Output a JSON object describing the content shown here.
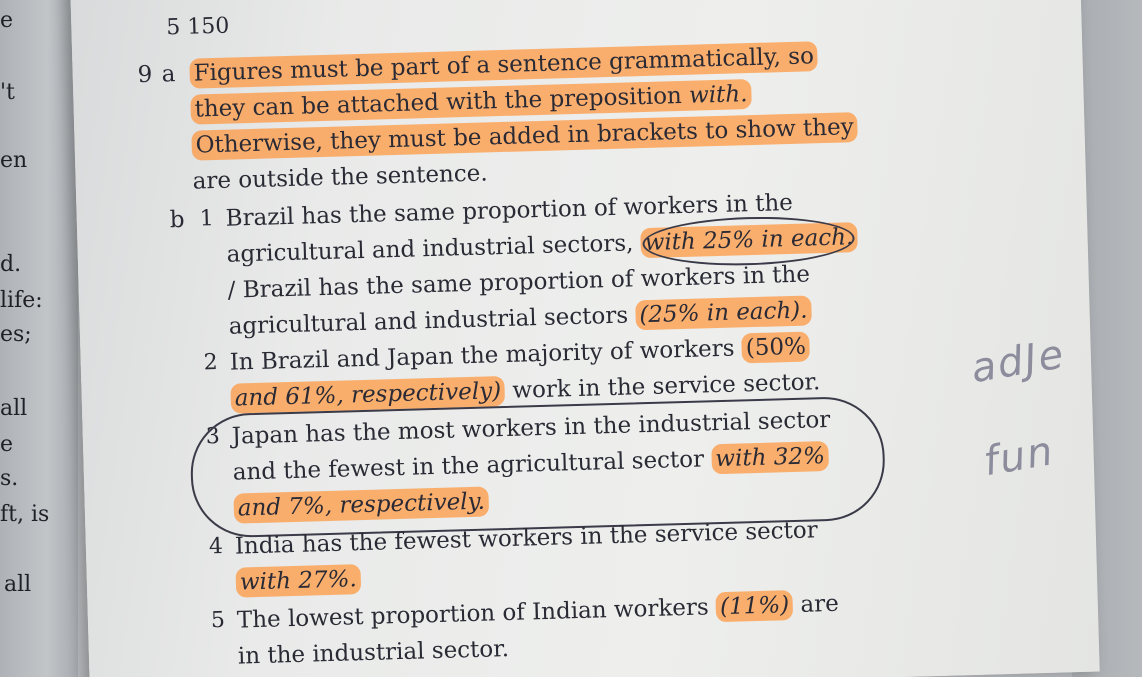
{
  "left_fragments": [
    "e",
    "'t",
    "en",
    "d.",
    "life:",
    "es;",
    "all",
    "e",
    "s.",
    "ft, is",
    "all"
  ],
  "header": {
    "page_ref": "5  150"
  },
  "item9": {
    "number": "9",
    "part_a": {
      "label": "a",
      "lines": [
        "Figures must be part of a sentence grammatically, so",
        "they can be attached with the preposition ",
        "Otherwise, they must be added in brackets to show they",
        "are outside the sentence."
      ],
      "italic_word": "with."
    },
    "part_b": {
      "label": "b",
      "s1": {
        "num": "1",
        "l1": "Brazil has the same proportion of workers in the",
        "l2a": "agricultural and industrial sectors, ",
        "l2b": "with 25% in each.",
        "l3": "/ Brazil has the same proportion of workers in the",
        "l4a": "agricultural and industrial sectors ",
        "l4b": "(25% in each)."
      },
      "s2": {
        "num": "2",
        "l1a": "In Brazil and Japan the majority of workers ",
        "l1b": "(50%",
        "l2a": "and 61%, respectively)",
        "l2b": " work in the service sector."
      },
      "s3": {
        "num": "3",
        "l1": "Japan has the most workers in the industrial sector",
        "l2a": "and the fewest in the agricultural sector ",
        "l2b": "with 32%",
        "l3": "and 7%, respectively."
      },
      "s4": {
        "num": "4",
        "l1": "India has the fewest workers in the service sector",
        "l2": "with 27%."
      },
      "s5": {
        "num": "5",
        "l1a": "The lowest proportion of Indian workers ",
        "l1b": "(11%)",
        "l1c": " are",
        "l2": "in the industrial sector."
      }
    }
  },
  "handwriting": {
    "note1": "adJe",
    "note2": "fun"
  }
}
